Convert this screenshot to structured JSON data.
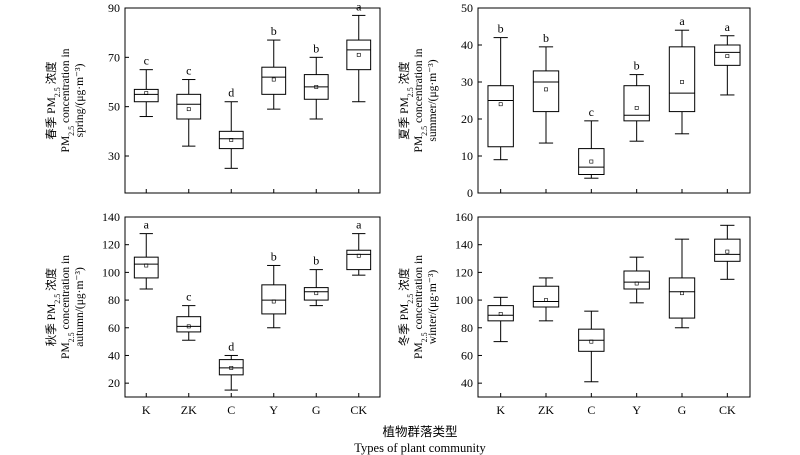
{
  "figure": {
    "xlabel_cn": "植物群落类型",
    "xlabel_en": "Types of plant community"
  },
  "chart_data": [
    {
      "type": "box",
      "categories": [
        "K",
        "ZK",
        "C",
        "Y",
        "G",
        "CK"
      ],
      "ylabel_cn": "春季 PM",
      "ylabel_cn_sub": "2.5",
      "ylabel_cn_tail": " 浓度",
      "ylabel_en1": "PM",
      "ylabel_en1_sub": "2.5",
      "ylabel_en1_tail": " concentration in",
      "ylabel_en2": "spring/(μg·m⁻³)",
      "ylim": [
        15,
        90
      ],
      "yticks": [
        30,
        50,
        70,
        90
      ],
      "show_xticklabels": false,
      "boxes": [
        {
          "min": 46,
          "q1": 52,
          "median": 55,
          "q3": 57,
          "max": 65,
          "mean": 55.5,
          "letter": "c"
        },
        {
          "min": 34,
          "q1": 45,
          "median": 51,
          "q3": 55,
          "max": 61,
          "mean": 49,
          "letter": "c"
        },
        {
          "min": 25,
          "q1": 33,
          "median": 37,
          "q3": 40,
          "max": 52,
          "mean": 36.5,
          "letter": "d"
        },
        {
          "min": 49,
          "q1": 55,
          "median": 62,
          "q3": 66,
          "max": 77,
          "mean": 61,
          "letter": "b"
        },
        {
          "min": 45,
          "q1": 53,
          "median": 58,
          "q3": 63,
          "max": 70,
          "mean": 58,
          "letter": "b"
        },
        {
          "min": 52,
          "q1": 65,
          "median": 73,
          "q3": 77,
          "max": 87,
          "mean": 71,
          "letter": "a"
        }
      ]
    },
    {
      "type": "box",
      "categories": [
        "K",
        "ZK",
        "C",
        "Y",
        "G",
        "CK"
      ],
      "ylabel_cn": "夏季 PM",
      "ylabel_cn_sub": "2.5",
      "ylabel_cn_tail": " 浓度",
      "ylabel_en1": "PM",
      "ylabel_en1_sub": "2.5",
      "ylabel_en1_tail": " concentration in",
      "ylabel_en2": "summer/(μg·m⁻³)",
      "ylim": [
        0,
        50
      ],
      "yticks": [
        0,
        10,
        20,
        30,
        40,
        50
      ],
      "show_xticklabels": false,
      "boxes": [
        {
          "min": 9,
          "q1": 12.5,
          "median": 25,
          "q3": 29,
          "max": 42,
          "mean": 24,
          "letter": "b"
        },
        {
          "min": 13.5,
          "q1": 22,
          "median": 30,
          "q3": 33,
          "max": 39.5,
          "mean": 28,
          "letter": "b"
        },
        {
          "min": 4,
          "q1": 5,
          "median": 7,
          "q3": 12,
          "max": 19.5,
          "mean": 8.5,
          "letter": "c"
        },
        {
          "min": 14,
          "q1": 19.5,
          "median": 21,
          "q3": 29,
          "max": 32,
          "mean": 23,
          "letter": "b"
        },
        {
          "min": 16,
          "q1": 22,
          "median": 27,
          "q3": 39.5,
          "max": 44,
          "mean": 30,
          "letter": "a"
        },
        {
          "min": 26.5,
          "q1": 34.5,
          "median": 38,
          "q3": 40,
          "max": 42.5,
          "mean": 37,
          "letter": "a"
        }
      ]
    },
    {
      "type": "box",
      "categories": [
        "K",
        "ZK",
        "C",
        "Y",
        "G",
        "CK"
      ],
      "ylabel_cn": "秋季 PM",
      "ylabel_cn_sub": "2.5",
      "ylabel_cn_tail": " 浓度",
      "ylabel_en1": "PM",
      "ylabel_en1_sub": "2.5",
      "ylabel_en1_tail": " concentration in",
      "ylabel_en2": "autumn/(μg·m⁻³)",
      "ylim": [
        10,
        140
      ],
      "yticks": [
        20,
        40,
        60,
        80,
        100,
        120,
        140
      ],
      "show_xticklabels": true,
      "boxes": [
        {
          "min": 88,
          "q1": 96,
          "median": 106,
          "q3": 111,
          "max": 128,
          "mean": 105,
          "letter": "a"
        },
        {
          "min": 51,
          "q1": 57,
          "median": 61,
          "q3": 68,
          "max": 76,
          "mean": 61,
          "letter": "c"
        },
        {
          "min": 15,
          "q1": 26,
          "median": 31,
          "q3": 37,
          "max": 40,
          "mean": 31,
          "letter": "d"
        },
        {
          "min": 60,
          "q1": 70,
          "median": 80,
          "q3": 91,
          "max": 105,
          "mean": 79,
          "letter": "b"
        },
        {
          "min": 76,
          "q1": 80,
          "median": 86,
          "q3": 89,
          "max": 102,
          "mean": 85,
          "letter": "b"
        },
        {
          "min": 98,
          "q1": 102,
          "median": 113,
          "q3": 116,
          "max": 128,
          "mean": 112,
          "letter": "a"
        }
      ]
    },
    {
      "type": "box",
      "categories": [
        "K",
        "ZK",
        "C",
        "Y",
        "G",
        "CK"
      ],
      "ylabel_cn": "冬季 PM",
      "ylabel_cn_sub": "2.5",
      "ylabel_cn_tail": " 浓度",
      "ylabel_en1": "PM",
      "ylabel_en1_sub": "2.5",
      "ylabel_en1_tail": " concentration in",
      "ylabel_en2": "winter/(μg·m⁻³)",
      "ylim": [
        30,
        160
      ],
      "yticks": [
        40,
        60,
        80,
        100,
        120,
        140,
        160
      ],
      "show_xticklabels": true,
      "boxes": [
        {
          "min": 70,
          "q1": 85,
          "median": 89,
          "q3": 96,
          "max": 102,
          "mean": 90,
          "letter": ""
        },
        {
          "min": 85,
          "q1": 95,
          "median": 99,
          "q3": 110,
          "max": 116,
          "mean": 100,
          "letter": ""
        },
        {
          "min": 41,
          "q1": 63,
          "median": 71,
          "q3": 79,
          "max": 92,
          "mean": 70,
          "letter": ""
        },
        {
          "min": 98,
          "q1": 108,
          "median": 113,
          "q3": 121,
          "max": 131,
          "mean": 112,
          "letter": ""
        },
        {
          "min": 80,
          "q1": 87,
          "median": 106,
          "q3": 116,
          "max": 144,
          "mean": 105,
          "letter": ""
        },
        {
          "min": 115,
          "q1": 128,
          "median": 133,
          "q3": 144,
          "max": 154,
          "mean": 135,
          "letter": ""
        }
      ]
    }
  ]
}
